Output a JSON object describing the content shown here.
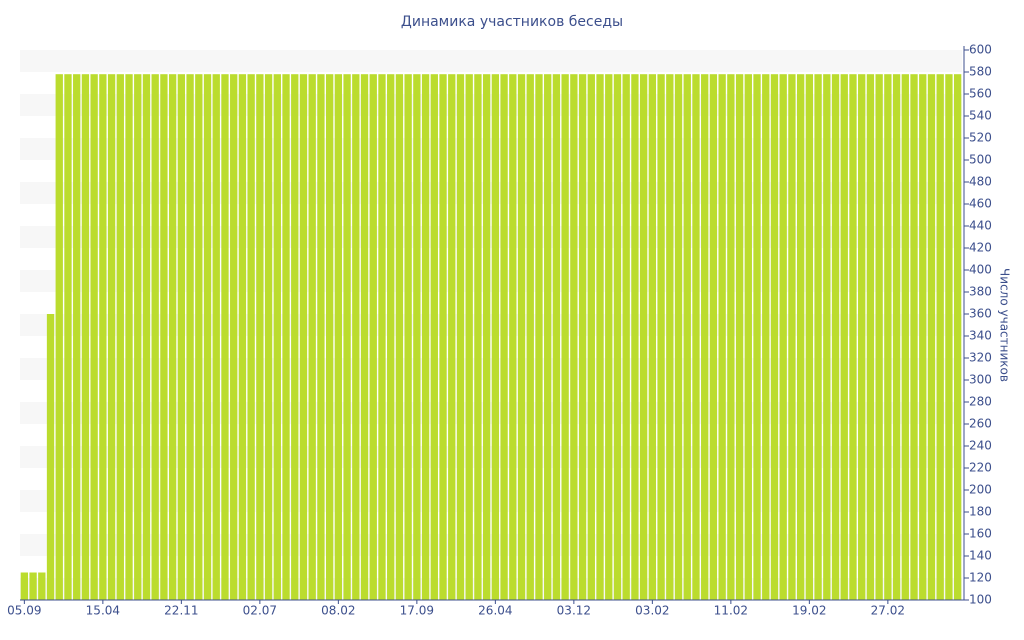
{
  "chart_data": {
    "type": "bar",
    "title": "Динамика участников беседы",
    "y_axis_label": "Число участников",
    "categories": [
      "05.09",
      null,
      null,
      null,
      null,
      null,
      null,
      null,
      null,
      "15.04",
      null,
      null,
      null,
      null,
      null,
      null,
      null,
      null,
      "22.11",
      null,
      null,
      null,
      null,
      null,
      null,
      null,
      null,
      "02.07",
      null,
      null,
      null,
      null,
      null,
      null,
      null,
      null,
      "08.02",
      null,
      null,
      null,
      null,
      null,
      null,
      null,
      null,
      "17.09",
      null,
      null,
      null,
      null,
      null,
      null,
      null,
      null,
      "26.04",
      null,
      null,
      null,
      null,
      null,
      null,
      null,
      null,
      "03.12",
      null,
      null,
      null,
      null,
      null,
      null,
      null,
      null,
      "03.02",
      null,
      null,
      null,
      null,
      null,
      null,
      null,
      null,
      "11.02",
      null,
      null,
      null,
      null,
      null,
      null,
      null,
      null,
      "19.02",
      null,
      null,
      null,
      null,
      null,
      null,
      null,
      null,
      "27.02",
      null,
      null,
      null,
      null,
      null,
      null,
      null,
      null
    ],
    "values": [
      125,
      125,
      125,
      360,
      578,
      578,
      578,
      578,
      578,
      578,
      578,
      578,
      578,
      578,
      578,
      578,
      578,
      578,
      578,
      578,
      578,
      578,
      578,
      578,
      578,
      578,
      578,
      578,
      578,
      578,
      578,
      578,
      578,
      578,
      578,
      578,
      578,
      578,
      578,
      578,
      578,
      578,
      578,
      578,
      578,
      578,
      578,
      578,
      578,
      578,
      578,
      578,
      578,
      578,
      578,
      578,
      578,
      578,
      578,
      578,
      578,
      578,
      578,
      578,
      578,
      578,
      578,
      578,
      578,
      578,
      578,
      578,
      578,
      578,
      578,
      578,
      578,
      578,
      578,
      578,
      578,
      578,
      578,
      578,
      578,
      578,
      578,
      578,
      578,
      578,
      578,
      578,
      578,
      578,
      578,
      578,
      578,
      578,
      578,
      578,
      578,
      578,
      578,
      578,
      578,
      578,
      578,
      578
    ],
    "color": "#bbdc2e",
    "ylim": [
      100,
      600
    ],
    "yticks": [
      100,
      120,
      140,
      160,
      180,
      200,
      220,
      240,
      260,
      280,
      300,
      320,
      340,
      360,
      380,
      400,
      420,
      440,
      460,
      480,
      500,
      520,
      540,
      560,
      580,
      600
    ],
    "y_axis_side": "right",
    "grid": true
  }
}
